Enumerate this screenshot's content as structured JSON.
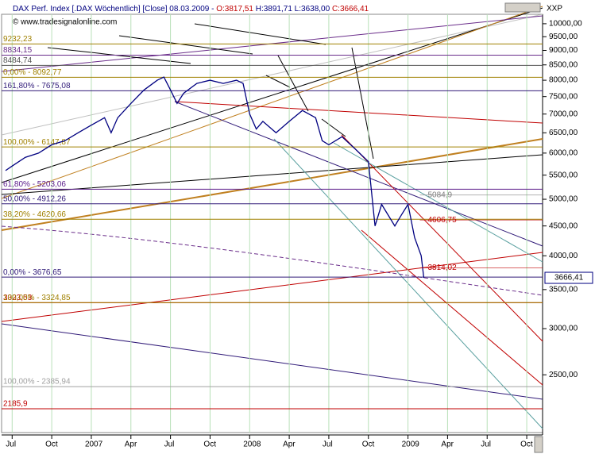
{
  "chart_data": {
    "type": "line",
    "title_parts": [
      {
        "text": "DAX Perf. Index [.DAX Wöchentlich] [Close] 08.03.2009 - ",
        "color": "#000080"
      },
      {
        "text": "O:3817,51",
        "color": "#c00000"
      },
      {
        "text": " H:3891,71 L:3638,00 ",
        "color": "#000080"
      },
      {
        "text": "C:3666,41",
        "color": "#c00000"
      }
    ],
    "subtitle": "© www.tradesignalonline.com",
    "symbol": "XXP",
    "log_scale": true,
    "ylim": [
      1990,
      10380
    ],
    "yticks": [
      {
        "value": 2500,
        "label": "2500,00"
      },
      {
        "value": 3000,
        "label": "3000,00"
      },
      {
        "value": 3500,
        "label": "3500,00"
      },
      {
        "value": 4000,
        "label": "4000,00"
      },
      {
        "value": 4500,
        "label": "4500,00"
      },
      {
        "value": 5000,
        "label": "5000,00"
      },
      {
        "value": 5500,
        "label": "5500,00"
      },
      {
        "value": 6000,
        "label": "6000,00"
      },
      {
        "value": 6500,
        "label": "6500,00"
      },
      {
        "value": 7000,
        "label": "7000,00"
      },
      {
        "value": 7500,
        "label": "7500,00"
      },
      {
        "value": 8000,
        "label": "8000,00"
      },
      {
        "value": 8500,
        "label": "8500,00"
      },
      {
        "value": 9000,
        "label": "9000,00"
      },
      {
        "value": 9500,
        "label": "9500,00"
      },
      {
        "value": 10000,
        "label": "10000,00"
      }
    ],
    "xlim": [
      5.2,
      46.2
    ],
    "xticks": [
      {
        "value": 6,
        "label": "Jul"
      },
      {
        "value": 9,
        "label": "Oct"
      },
      {
        "value": 12,
        "label": "2007"
      },
      {
        "value": 15,
        "label": "Apr"
      },
      {
        "value": 18,
        "label": "Jul"
      },
      {
        "value": 21,
        "label": "Oct"
      },
      {
        "value": 24,
        "label": "2008"
      },
      {
        "value": 27,
        "label": "Apr"
      },
      {
        "value": 30,
        "label": "Jul"
      },
      {
        "value": 33,
        "label": "Oct"
      },
      {
        "value": 36,
        "label": "2009"
      },
      {
        "value": 39,
        "label": "Apr"
      },
      {
        "value": 42,
        "label": "Jul"
      },
      {
        "value": 45,
        "label": "Oct"
      }
    ],
    "grid": true,
    "series": [
      {
        "color": "#000080",
        "x": [
          5.5,
          6,
          7,
          8,
          9,
          10,
          11,
          12,
          13,
          13.5,
          14,
          15,
          16,
          17,
          17.5,
          18,
          18.5,
          19,
          20,
          21,
          22,
          23,
          23.5,
          24,
          24.5,
          25,
          26,
          27,
          28,
          29,
          29.5,
          30,
          31,
          32,
          33,
          33.5,
          34,
          35,
          35.5,
          36,
          36.5,
          37,
          37.2
        ],
        "values": [
          5600,
          5700,
          5900,
          6000,
          6200,
          6300,
          6500,
          6700,
          6900,
          6500,
          6900,
          7300,
          7700,
          8000,
          8100,
          7700,
          7300,
          7600,
          7900,
          8000,
          7900,
          8000,
          7900,
          7000,
          6600,
          6800,
          6500,
          6800,
          7100,
          6900,
          6300,
          6200,
          6400,
          6100,
          5800,
          4500,
          4900,
          4500,
          4700,
          4900,
          4300,
          4000,
          3666
        ]
      }
    ],
    "last_value": {
      "value": 3666.41,
      "label": "3666,41"
    },
    "levels": [
      {
        "label": "9232,23",
        "value": 9232.23,
        "color": "#a08000"
      },
      {
        "label": "8834,15",
        "value": 8834.15,
        "color": "#6a2d8a"
      },
      {
        "label": "8484,74",
        "value": 8484.74,
        "color": "#555555"
      },
      {
        "label": "0,00% - 8092,77",
        "value": 8092.77,
        "color": "#a08000"
      },
      {
        "label": "161,80% - 7675,08",
        "value": 7675.08,
        "color": "#301a78"
      },
      {
        "label": "100,00% - 6147,87",
        "value": 6147.87,
        "color": "#a08000"
      },
      {
        "label": "61,80% - 5203,06",
        "value": 5203.06,
        "color": "#5a1a8a"
      },
      {
        "label": "50,00% - 4912,26",
        "value": 4912.26,
        "color": "#301a78"
      },
      {
        "label": "38,20% - 4620,66",
        "value": 4620.66,
        "color": "#a08000"
      },
      {
        "label": "0,00% - 3676,65",
        "value": 3676.65,
        "color": "#301a78"
      },
      {
        "label": "3323,53",
        "value": 3323.53,
        "color": "#c00000"
      },
      {
        "label": "100,00% - 3324,85",
        "value": 3324.85,
        "color": "#a08000"
      },
      {
        "label": "100,00% - 2385,94",
        "value": 2385.94,
        "color": "#a0a0a0"
      },
      {
        "label": "2185,9",
        "value": 2185.9,
        "color": "#c00000"
      }
    ],
    "annotations": [
      {
        "label": "5084,9",
        "value": 5084.9,
        "x": 37.5,
        "color": "#808080"
      },
      {
        "label": "4606,75",
        "value": 4606.75,
        "x": 37.5,
        "color": "#c00000"
      },
      {
        "label": "3814,02",
        "value": 3814.02,
        "x": 37.5,
        "color": "#c00000"
      }
    ]
  }
}
